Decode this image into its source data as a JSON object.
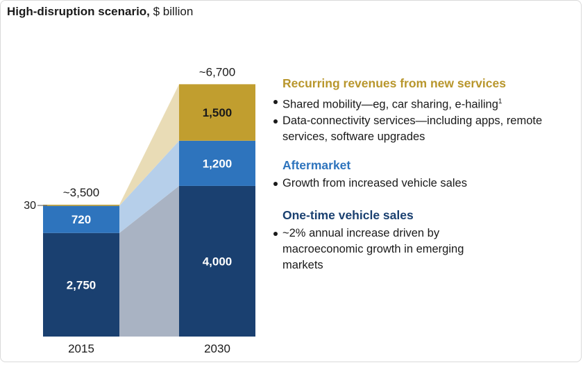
{
  "title": {
    "bold": "High-disruption scenario,",
    "unit": " $ billion"
  },
  "colors": {
    "one_time": "#1a4070",
    "aftermarket": "#2e74bd",
    "recurring": "#c19e2f",
    "one_time_fill": "#a9b3c3",
    "aftermarket_fill": "#b6cfea",
    "recurring_fill": "#e9dcb6",
    "head_recurring": "#b8962c",
    "head_aftermarket": "#2e74bd",
    "head_one_time": "#1a4070"
  },
  "chart_data": {
    "type": "bar",
    "stacked": true,
    "categories": [
      "2015",
      "2030"
    ],
    "series": [
      {
        "name": "One-time vehicle sales",
        "values": [
          2750,
          4000
        ],
        "labels": [
          "2,750",
          "4,000"
        ]
      },
      {
        "name": "Aftermarket",
        "values": [
          720,
          1200
        ],
        "labels": [
          "720",
          "1,200"
        ]
      },
      {
        "name": "Recurring revenues from new services",
        "values": [
          30,
          1500
        ],
        "labels": [
          "30",
          "1,500"
        ]
      }
    ],
    "totals": [
      "~3,500",
      "~6,700"
    ],
    "title": "High-disruption scenario, $ billion",
    "ylim": [
      0,
      6700
    ]
  },
  "legend": {
    "recurring": {
      "heading": "Recurring revenues from new services",
      "bullets": [
        {
          "text": "Shared mobility—eg, car sharing, e-hailing",
          "sup": "1"
        },
        {
          "text": "Data-connectivity services—including apps, remote services, software upgrades",
          "sup": ""
        }
      ]
    },
    "aftermarket": {
      "heading": "Aftermarket",
      "bullets": [
        {
          "text": "Growth from increased vehicle sales",
          "sup": ""
        }
      ]
    },
    "one_time": {
      "heading": "One-time vehicle sales",
      "bullets": [
        {
          "text": "~2% annual increase driven by macroeconomic growth in emerging markets",
          "sup": ""
        }
      ]
    }
  }
}
